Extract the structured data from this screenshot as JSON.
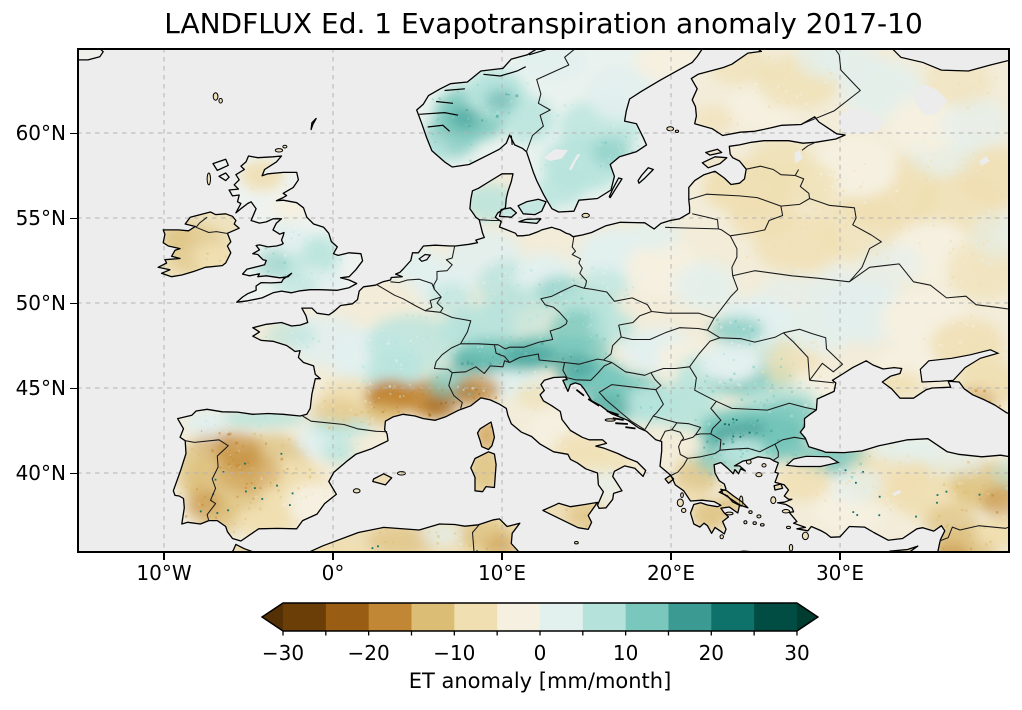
{
  "figure": {
    "title": "LANDFLUX Ed. 1 Evapotranspiration anomaly 2017-10"
  },
  "map": {
    "projection": "PlateCarree",
    "extent_lon": [
      -15.15,
      40.05
    ],
    "extent_lat": [
      35.3,
      65.0
    ],
    "grid_lons": [
      -10,
      0,
      10,
      20,
      30
    ],
    "grid_lats": [
      60,
      55,
      50,
      45,
      40
    ],
    "x_tick_labels": [
      "10°W",
      "0°",
      "10°E",
      "20°E",
      "30°E"
    ],
    "y_tick_labels": [
      "60°N",
      "55°N",
      "50°N",
      "45°N",
      "40°N"
    ],
    "ocean_color": "#ededed",
    "land_color": "#f2ecd9",
    "coastline_color": "#000000",
    "border_color": "#1a1a1a",
    "gridline_color": "#b3b3b3"
  },
  "colorbar": {
    "label": "ET anomaly [mm/month]",
    "tick_labels": [
      "−30",
      "−20",
      "−10",
      "0",
      "10",
      "20",
      "30"
    ],
    "tick_values": [
      -30,
      -20,
      -10,
      0,
      10,
      20,
      30
    ],
    "boundaries": [
      -30,
      -25,
      -20,
      -15,
      -10,
      -5,
      0,
      5,
      10,
      15,
      20,
      25,
      30
    ],
    "segment_colors": [
      "#6b3e07",
      "#995d13",
      "#c28734",
      "#dcbd76",
      "#f0dfb1",
      "#f5f0e0",
      "#e2f0ee",
      "#b5e3dc",
      "#7ac8bd",
      "#3b9b93",
      "#0e726a",
      "#014d43"
    ],
    "extend_colors": {
      "under": "#543005",
      "over": "#003c30"
    },
    "units": "mm/month"
  }
}
